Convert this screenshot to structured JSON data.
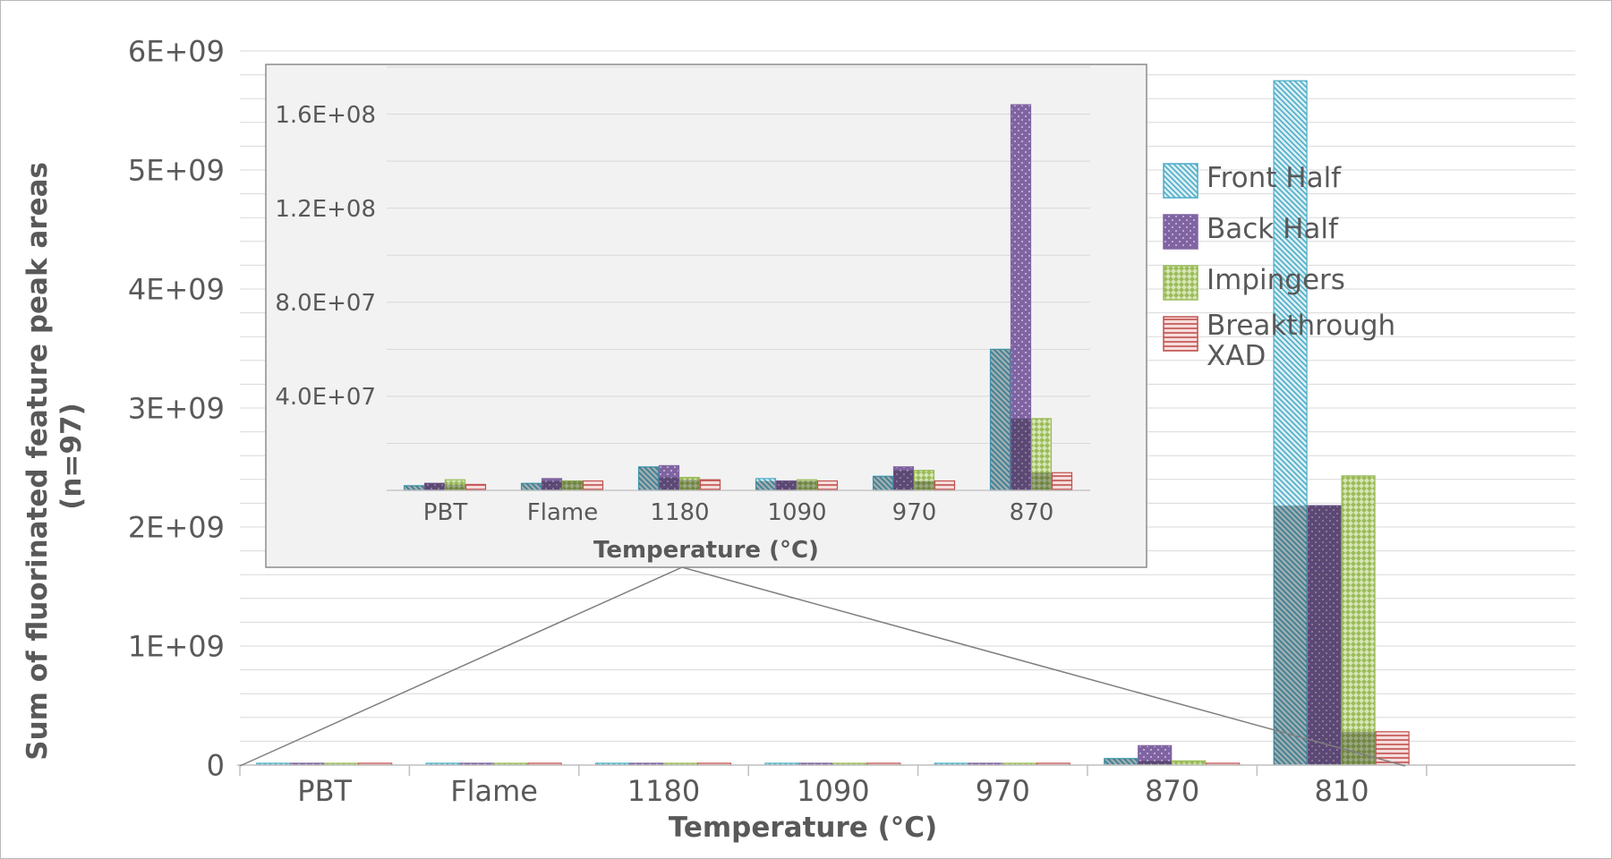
{
  "chart_data": [
    {
      "type": "bar",
      "title": "",
      "xlabel": "Temperature (°C)",
      "ylabel": "Sum of fluorinated feature peak areas (n=97)",
      "ylim": [
        0,
        6000000000
      ],
      "yticks": [
        "0",
        "1E+09",
        "2E+09",
        "3E+09",
        "4E+09",
        "5E+09",
        "6E+09"
      ],
      "categories": [
        "PBT",
        "Flame",
        "1180",
        "1090",
        "970",
        "870",
        "810"
      ],
      "series": [
        {
          "name": "Front Half",
          "color": "#4bacc6",
          "values": [
            2000000,
            3000000,
            7000000,
            5000000,
            4000000,
            55000000,
            5750000000
          ]
        },
        {
          "name": "Back Half",
          "color": "#8064a2",
          "values": [
            3000000,
            5000000,
            7000000,
            4000000,
            7000000,
            163000000,
            2180000000
          ]
        },
        {
          "name": "Impingers",
          "color": "#9bbb59",
          "values": [
            4000000,
            4000000,
            5000000,
            5000000,
            6000000,
            35000000,
            2430000000
          ]
        },
        {
          "name": "Breakthrough XAD",
          "color": "#c0504d",
          "values": [
            2000000,
            4000000,
            4000000,
            4000000,
            4000000,
            8000000,
            280000000
          ]
        }
      ],
      "grid": true,
      "legend": "right"
    },
    {
      "type": "bar",
      "title": "",
      "xlabel": "Temperature (°C)",
      "ylabel": "",
      "ylim": [
        0,
        180000000
      ],
      "yticks": [
        "4.0E+07",
        "8.0E+07",
        "1.2E+08",
        "1.6E+08"
      ],
      "categories": [
        "PBT",
        "Flame",
        "1180",
        "1090",
        "970",
        "870"
      ],
      "series": [
        {
          "name": "Front Half",
          "color": "#4bacc6",
          "values": [
            2000000,
            3000000,
            10000000,
            5000000,
            6000000,
            60000000
          ]
        },
        {
          "name": "Back Half",
          "color": "#8064a2",
          "values": [
            3000000,
            5000000,
            10500000,
            4000000,
            10000000,
            164000000
          ]
        },
        {
          "name": "Impingers",
          "color": "#9bbb59",
          "values": [
            4500000,
            4000000,
            5500000,
            4500000,
            8500000,
            30500000
          ]
        },
        {
          "name": "Breakthrough XAD",
          "color": "#c0504d",
          "values": [
            2500000,
            4000000,
            4500000,
            4000000,
            4000000,
            7500000
          ]
        }
      ],
      "grid": true,
      "legend": "none",
      "placement": "inset top-left"
    }
  ]
}
